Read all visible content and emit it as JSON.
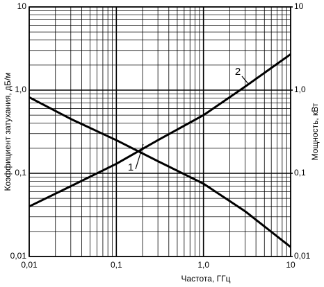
{
  "chart_data": {
    "type": "line",
    "x_label": "Частота, ГГц",
    "y_label": "Коэффициент затухания, дБ/м",
    "y2_label": "Мощность, кВт",
    "x": [
      0.01,
      0.03,
      0.1,
      0.3,
      1,
      3,
      10
    ],
    "series": [
      {
        "name": "1",
        "color": "#000000",
        "values": [
          0.82,
          0.45,
          0.25,
          0.14,
          0.075,
          0.035,
          0.013
        ]
      },
      {
        "name": "2",
        "color": "#000000",
        "axis": "y2",
        "values": [
          0.04,
          0.07,
          0.13,
          0.25,
          0.5,
          1.1,
          2.7
        ]
      }
    ],
    "xlim": [
      0.01,
      10
    ],
    "ylim": [
      0.01,
      10
    ],
    "y2lim": [
      0.01,
      10
    ],
    "xticks": [
      {
        "value": 0.01,
        "label": "0,01"
      },
      {
        "value": 0.1,
        "label": "0,1"
      },
      {
        "value": 1,
        "label": "1,0"
      },
      10
    ],
    "yticks": [
      {
        "value": 0.01,
        "label": "0,01"
      },
      {
        "value": 0.1,
        "label": "0,1"
      },
      {
        "value": 1,
        "label": "1,0"
      },
      10
    ],
    "y2ticks": [
      {
        "value": 0.01,
        "label": "0,01"
      },
      {
        "value": 0.1,
        "label": "0,1"
      },
      {
        "value": 1,
        "label": "1,0"
      },
      10
    ],
    "log_x": true,
    "log_y": true,
    "grid": true,
    "minor_grid": true
  }
}
